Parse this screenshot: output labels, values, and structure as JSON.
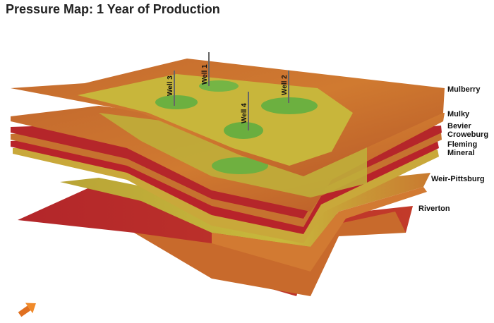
{
  "header": {
    "title": "Pressure Map: 1 Year of Production"
  },
  "wells": [
    {
      "label": "Well 1"
    },
    {
      "label": "Well 2"
    },
    {
      "label": "Well 3"
    },
    {
      "label": "Well 4"
    }
  ],
  "layers": [
    {
      "label": "Mulberry"
    },
    {
      "label": "Mulky"
    },
    {
      "label": "Bevier"
    },
    {
      "label": "Croweburg"
    },
    {
      "label": "Fleming"
    },
    {
      "label": "Mineral"
    },
    {
      "label": "Weir-Pittsburg"
    },
    {
      "label": "Riverton"
    }
  ]
}
